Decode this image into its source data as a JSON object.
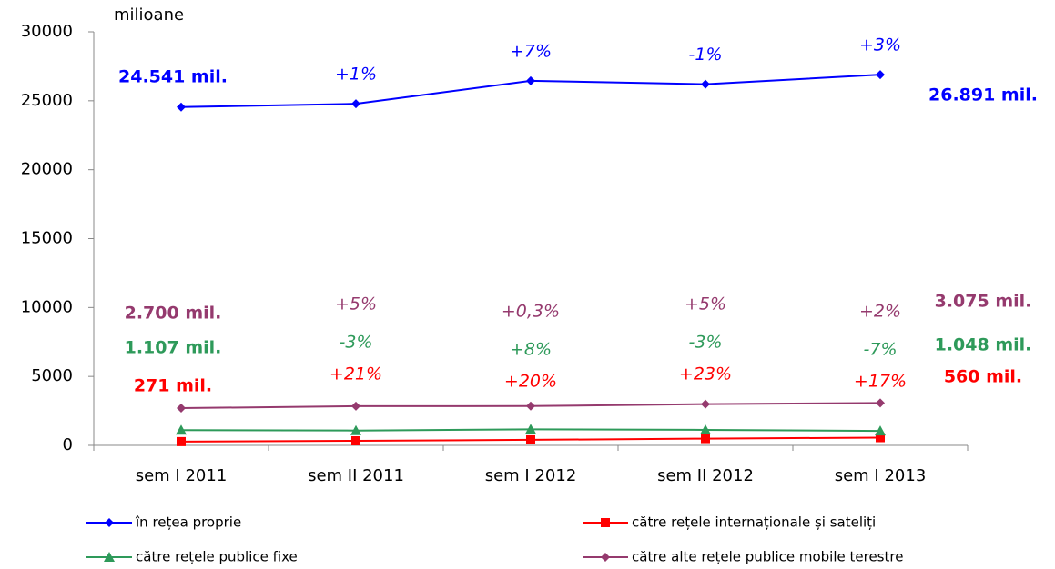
{
  "chart_data": {
    "type": "line",
    "y_axis_label": "milioane",
    "categories": [
      "sem I 2011",
      "sem II 2011",
      "sem I 2012",
      "sem II 2012",
      "sem I 2013"
    ],
    "ylim": [
      0,
      30000
    ],
    "yticks": [
      0,
      5000,
      10000,
      15000,
      20000,
      25000,
      30000
    ],
    "series": [
      {
        "name": "în rețea proprie",
        "color": "#0000ff",
        "marker": "diamond",
        "values": [
          24541,
          24780,
          26450,
          26200,
          26891
        ],
        "value_labels": [
          "24.541 mil.",
          null,
          null,
          null,
          "26.891 mil."
        ],
        "annotations": [
          null,
          "+1%",
          "+7%",
          "-1%",
          "+3%"
        ]
      },
      {
        "name": "către rețele internaționale și sateliți",
        "color": "#ff0000",
        "marker": "square",
        "values": [
          271,
          330,
          400,
          490,
          560
        ],
        "value_labels": [
          "271 mil.",
          null,
          null,
          null,
          "560 mil."
        ],
        "annotations": [
          null,
          "+21%",
          "+20%",
          "+23%",
          "+17%"
        ]
      },
      {
        "name": "către rețele publice fixe",
        "color": "#2e9a5a",
        "marker": "triangle",
        "values": [
          1107,
          1075,
          1160,
          1125,
          1048
        ],
        "value_labels": [
          "1.107 mil.",
          null,
          null,
          null,
          "1.048 mil."
        ],
        "annotations": [
          null,
          "-3%",
          "+8%",
          "-3%",
          "-7%"
        ]
      },
      {
        "name": "către alte rețele publice mobile terestre",
        "color": "#953a6e",
        "marker": "diamond",
        "values": [
          2700,
          2840,
          2850,
          2990,
          3075
        ],
        "value_labels": [
          "2.700 mil.",
          null,
          null,
          null,
          "3.075 mil."
        ],
        "annotations": [
          null,
          "+5%",
          "+0,3%",
          "+5%",
          "+2%"
        ]
      }
    ]
  }
}
